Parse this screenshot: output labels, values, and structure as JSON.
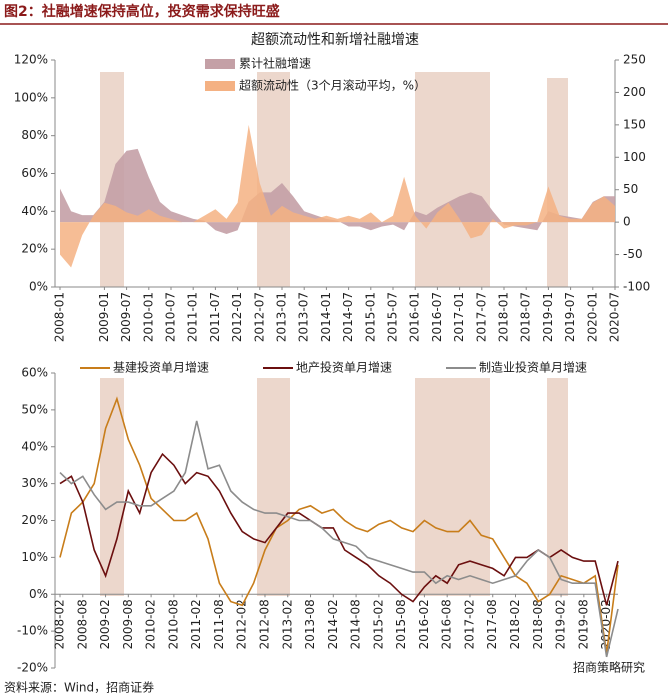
{
  "header": {
    "title": "图2：社融增速保持高位，投资需求保持旺盛"
  },
  "footer": {
    "source": "资料来源：Wind，招商证券",
    "watermark": "招商策略研究"
  },
  "chart_data": [
    {
      "type": "area",
      "title": "超额流动性和新增社融增速",
      "legend": "top-left",
      "categories": [
        "2008-01",
        null,
        null,
        null,
        "2009-01",
        null,
        "2009-07",
        null,
        "2010-01",
        null,
        "2010-07",
        null,
        "2011-01",
        null,
        "2011-07",
        null,
        "2012-01",
        null,
        "2012-07",
        null,
        "2013-01",
        null,
        "2013-07",
        null,
        "2014-01",
        null,
        "2014-07",
        null,
        "2015-01",
        null,
        "2015-07",
        null,
        "2016-01",
        null,
        "2016-07",
        null,
        "2017-01",
        null,
        "2017-07",
        null,
        "2018-01",
        null,
        "2018-07",
        null,
        "2019-01",
        null,
        "2019-07",
        null,
        "2020-01",
        null,
        "2020-07"
      ],
      "ylim": [
        0,
        120
      ],
      "yticks": [
        {
          "value": 0,
          "label": "0%"
        },
        {
          "value": 20,
          "label": "20%"
        },
        {
          "value": 40,
          "label": "40%"
        },
        {
          "value": 60,
          "label": "60%"
        },
        {
          "value": 80,
          "label": "80%"
        },
        {
          "value": 100,
          "label": "100%"
        },
        {
          "value": 120,
          "label": "120%"
        }
      ],
      "y2lim": [
        -100,
        250
      ],
      "y2ticks": [
        -100,
        -50,
        0,
        50,
        100,
        150,
        200,
        250
      ],
      "series": [
        {
          "name": "累计社融增速",
          "color": "#c4a0a6",
          "values": [
            52,
            40,
            38,
            38,
            45,
            65,
            72,
            73,
            58,
            45,
            40,
            38,
            36,
            35,
            30,
            28,
            30,
            45,
            50,
            50,
            55,
            48,
            40,
            38,
            36,
            35,
            32,
            32,
            30,
            32,
            33,
            30,
            40,
            38,
            42,
            45,
            48,
            50,
            48,
            40,
            33,
            32,
            31,
            30,
            40,
            38,
            37,
            36,
            45,
            48,
            48
          ]
        },
        {
          "name": "超额流动性（3个月滚动平均，%）",
          "color": "#f4b183",
          "axis": "y2",
          "values": [
            -50,
            -70,
            -20,
            10,
            30,
            25,
            15,
            10,
            20,
            10,
            5,
            0,
            0,
            10,
            20,
            5,
            30,
            150,
            60,
            10,
            25,
            15,
            10,
            5,
            10,
            5,
            10,
            5,
            15,
            0,
            10,
            70,
            10,
            -10,
            15,
            30,
            5,
            -25,
            -20,
            5,
            -10,
            -5,
            -5,
            0,
            55,
            10,
            5,
            5,
            30,
            40,
            25
          ]
        }
      ]
    },
    {
      "type": "line",
      "legend": "top",
      "categories": [
        "2008-02",
        null,
        "2008-08",
        null,
        "2009-02",
        null,
        "2009-08",
        null,
        "2010-02",
        null,
        "2010-08",
        null,
        "2011-02",
        null,
        "2011-08",
        null,
        "2012-02",
        null,
        "2012-08",
        null,
        "2013-02",
        null,
        "2013-08",
        null,
        "2014-02",
        null,
        "2014-08",
        null,
        "2015-02",
        null,
        "2015-08",
        null,
        "2016-02",
        null,
        "2016-08",
        null,
        "2017-02",
        null,
        "2017-08",
        null,
        "2018-02",
        null,
        "2018-08",
        null,
        "2019-02",
        null,
        "2019-08",
        null,
        "2020-02",
        null
      ],
      "ylim": [
        -20,
        60
      ],
      "yticks": [
        {
          "value": -20,
          "label": "-20%"
        },
        {
          "value": -10,
          "label": "-10%"
        },
        {
          "value": 0,
          "label": "0%"
        },
        {
          "value": 10,
          "label": "10%"
        },
        {
          "value": 20,
          "label": "20%"
        },
        {
          "value": 30,
          "label": "30%"
        },
        {
          "value": 40,
          "label": "40%"
        },
        {
          "value": 50,
          "label": "50%"
        },
        {
          "value": 60,
          "label": "60%"
        }
      ],
      "series": [
        {
          "name": "基建投资单月增速",
          "color": "#c87d1a",
          "values": [
            10,
            22,
            25,
            30,
            45,
            53,
            42,
            35,
            26,
            23,
            20,
            20,
            22,
            15,
            3,
            -2,
            -3,
            3,
            12,
            18,
            20,
            23,
            24,
            22,
            23,
            20,
            18,
            17,
            19,
            20,
            18,
            17,
            20,
            18,
            17,
            17,
            20,
            16,
            15,
            10,
            5,
            3,
            -2,
            0,
            5,
            4,
            3,
            5,
            -16,
            8
          ]
        },
        {
          "name": "地产投资单月增速",
          "color": "#6b0f0f",
          "values": [
            30,
            32,
            25,
            12,
            5,
            15,
            28,
            22,
            33,
            38,
            35,
            30,
            33,
            32,
            28,
            22,
            17,
            15,
            14,
            18,
            22,
            22,
            20,
            18,
            18,
            12,
            10,
            8,
            5,
            3,
            0,
            -2,
            2,
            5,
            3,
            8,
            9,
            8,
            7,
            5,
            10,
            10,
            12,
            10,
            12,
            10,
            9,
            9,
            -3,
            9
          ]
        },
        {
          "name": "制造业投资单月增速",
          "color": "#8c8c8c",
          "values": [
            33,
            30,
            32,
            27,
            23,
            25,
            25,
            24,
            24,
            26,
            28,
            33,
            47,
            34,
            35,
            28,
            25,
            23,
            22,
            22,
            21,
            20,
            20,
            18,
            15,
            14,
            13,
            10,
            9,
            8,
            7,
            6,
            6,
            3,
            5,
            4,
            5,
            4,
            3,
            4,
            5,
            9,
            12,
            10,
            4,
            3,
            3,
            3,
            -17,
            -4
          ]
        }
      ]
    }
  ]
}
